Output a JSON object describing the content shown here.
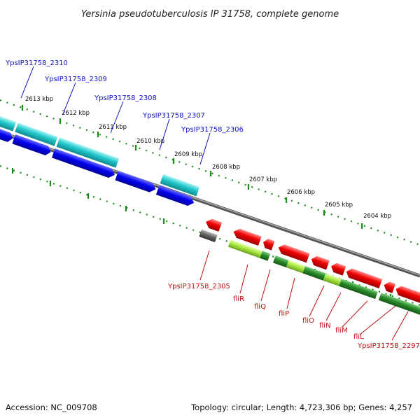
{
  "header": {
    "title": "Yersinia pseudotuberculosis IP 31758, complete genome"
  },
  "ticks": [
    "2613 kbp",
    "2612 kbp",
    "2611 kbp",
    "2610 kbp",
    "2609 kbp",
    "2608 kbp",
    "2607 kbp",
    "2606 kbp",
    "2605 kbp",
    "2604 kbp"
  ],
  "labels_top": [
    "YpsIP31758_2310",
    "YpsIP31758_2309",
    "YpsIP31758_2308",
    "YpsIP31758_2307",
    "YpsIP31758_2306"
  ],
  "labels_bottom": [
    "YpsIP31758_2305",
    "fliR",
    "fliQ",
    "fliP",
    "fliO",
    "fliN",
    "fliM",
    "fliL",
    "YpsIP31758_2297"
  ],
  "footer": {
    "accession": "Accession: NC_009708",
    "topology": "Topology: circular; Length: 4,723,306 bp; Genes: 4,257"
  },
  "colors": {
    "cds_forward": "#0000ee",
    "gene_forward": "#20c8cc",
    "cds_reverse": "#ee0000",
    "gene_reverse": "#2a8a2a",
    "gene_reverse_light": "#a8e840",
    "pseudo": "#666666",
    "backbone": "#888888",
    "ticks": "#1a8a1a"
  }
}
